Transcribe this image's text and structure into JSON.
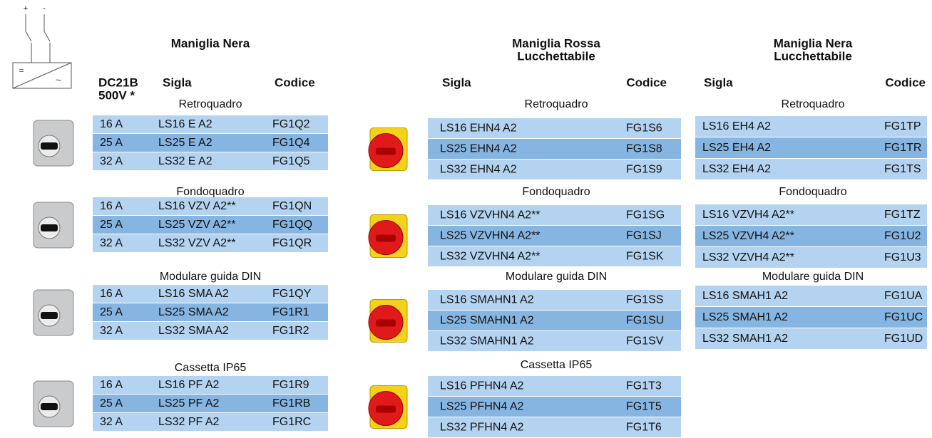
{
  "symbol": {
    "labels": [
      "+",
      "-",
      "=",
      "~"
    ]
  },
  "tables": [
    {
      "title": [
        "Maniglia Nera"
      ],
      "rating_header": [
        "DC21B",
        "500V *"
      ],
      "sigla_header": "Sigla",
      "codice_header": "Codice",
      "groups": [
        {
          "label": "Retroquadro",
          "rows": [
            [
              "16 A",
              "LS16 E A2",
              "FG1Q2"
            ],
            [
              "25 A",
              "LS25 E A2",
              "FG1Q4"
            ],
            [
              "32 A",
              "LS32 E A2",
              "FG1Q5"
            ]
          ]
        },
        {
          "label": "Fondoquadro",
          "rows": [
            [
              "16 A",
              "LS16 VZV A2**",
              "FG1QN"
            ],
            [
              "25 A",
              "LS25 VZV A2**",
              "FG1QQ"
            ],
            [
              "32 A",
              "LS32 VZV A2**",
              "FG1QR"
            ]
          ]
        },
        {
          "label": "Modulare guida DIN",
          "rows": [
            [
              "16 A",
              "LS16 SMA A2",
              "FG1QY"
            ],
            [
              "25 A",
              "LS25 SMA A2",
              "FG1R1"
            ],
            [
              "32 A",
              "LS32 SMA A2",
              "FG1R2"
            ]
          ]
        },
        {
          "label": "Cassetta IP65",
          "rows": [
            [
              "16 A",
              "LS16 PF A2",
              "FG1R9"
            ],
            [
              "25 A",
              "LS25 PF A2",
              "FG1RB"
            ],
            [
              "32 A",
              "LS32 PF A2",
              "FG1RC"
            ]
          ]
        }
      ]
    },
    {
      "title": [
        "Maniglia Rossa",
        "Lucchettabile"
      ],
      "sigla_header": "Sigla",
      "codice_header": "Codice",
      "groups": [
        {
          "label": "Retroquadro",
          "rows": [
            [
              "LS16 EHN4 A2",
              "FG1S6"
            ],
            [
              "LS25 EHN4 A2",
              "FG1S8"
            ],
            [
              "LS32 EHN4 A2",
              "FG1S9"
            ]
          ]
        },
        {
          "label": "Fondoquadro",
          "rows": [
            [
              "LS16 VZVHN4 A2**",
              "FG1SG"
            ],
            [
              "LS25 VZVHN4 A2**",
              "FG1SJ"
            ],
            [
              "LS32 VZVHN4 A2**",
              "FG1SK"
            ]
          ]
        },
        {
          "label": "Modulare guida DIN",
          "rows": [
            [
              "LS16 SMAHN1 A2",
              "FG1SS"
            ],
            [
              "LS25 SMAHN1 A2",
              "FG1SU"
            ],
            [
              "LS32 SMAHN1 A2",
              "FG1SV"
            ]
          ]
        },
        {
          "label": "Cassetta IP65",
          "rows": [
            [
              "LS16 PFHN4 A2",
              "FG1T3"
            ],
            [
              "LS25 PFHN4 A2",
              "FG1T5"
            ],
            [
              "LS32 PFHN4 A2",
              "FG1T6"
            ]
          ]
        }
      ]
    },
    {
      "title": [
        "Maniglia Nera",
        "Lucchettabile"
      ],
      "sigla_header": "Sigla",
      "codice_header": "Codice",
      "groups": [
        {
          "label": "Retroquadro",
          "rows": [
            [
              "LS16 EH4 A2",
              "FG1TP"
            ],
            [
              "LS25 EH4 A2",
              "FG1TR"
            ],
            [
              "LS32 EH4 A2",
              "FG1TS"
            ]
          ]
        },
        {
          "label": "Fondoquadro",
          "rows": [
            [
              "LS16 VZVH4 A2**",
              "FG1TZ"
            ],
            [
              "LS25 VZVH4 A2**",
              "FG1U2"
            ],
            [
              "LS32 VZVH4 A2**",
              "FG1U3"
            ]
          ]
        },
        {
          "label": "Modulare guida DIN",
          "rows": [
            [
              "LS16 SMAH1 A2",
              "FG1UA"
            ],
            [
              "LS25 SMAH1 A2",
              "FG1UC"
            ],
            [
              "LS32 SMAH1 A2",
              "FG1UD"
            ]
          ]
        }
      ]
    }
  ]
}
